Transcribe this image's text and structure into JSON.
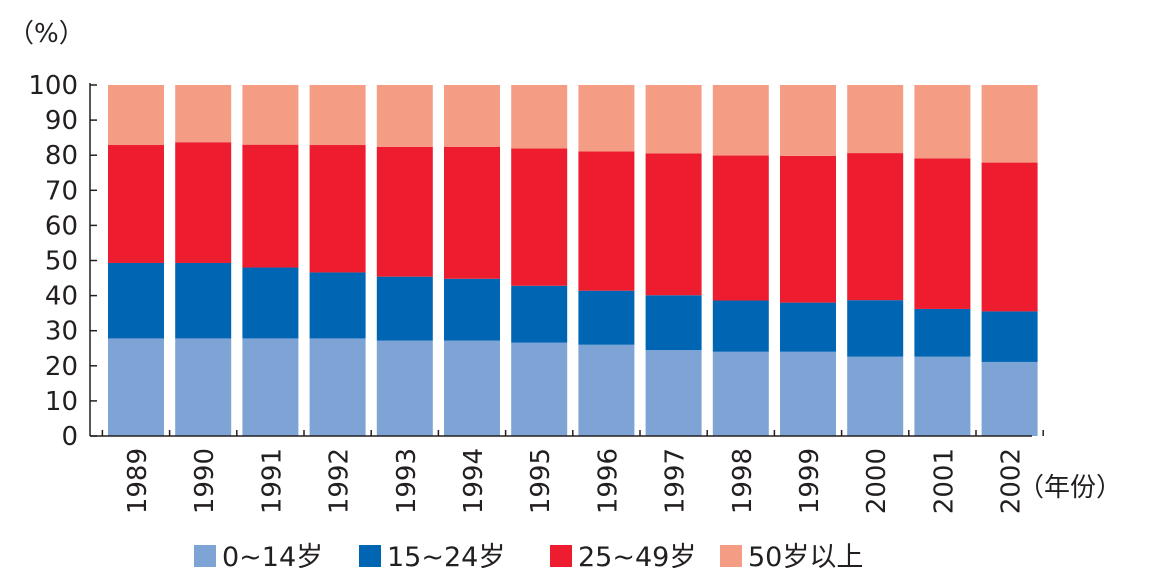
{
  "chart_data": {
    "type": "bar",
    "stacked": true,
    "y_unit_label": "（%）",
    "x_unit_label": "（年份）",
    "ylim": [
      0,
      100
    ],
    "yticks": [
      0,
      10,
      20,
      30,
      40,
      50,
      60,
      70,
      80,
      90,
      100
    ],
    "categories": [
      "1989",
      "1990",
      "1991",
      "1992",
      "1993",
      "1994",
      "1995",
      "1996",
      "1997",
      "1998",
      "1999",
      "2000",
      "2001",
      "2002"
    ],
    "series": [
      {
        "name": "0~14岁",
        "color": "#7ea3d5",
        "values": [
          27.8,
          27.8,
          27.8,
          27.8,
          27.2,
          27.2,
          26.6,
          26.0,
          24.5,
          24.0,
          24.0,
          22.6,
          22.6,
          21.1
        ]
      },
      {
        "name": "15~24岁",
        "color": "#0066b3",
        "values": [
          21.5,
          21.5,
          20.2,
          18.8,
          18.2,
          17.6,
          16.2,
          15.4,
          15.6,
          14.6,
          14.0,
          16.1,
          13.6,
          14.4
        ]
      },
      {
        "name": "25~49岁",
        "color": "#ed1c2e",
        "values": [
          33.6,
          34.4,
          35.0,
          36.3,
          37.0,
          37.6,
          39.1,
          39.7,
          40.4,
          41.3,
          41.8,
          41.9,
          42.9,
          42.4
        ]
      },
      {
        "name": "50岁以上",
        "color": "#f59c85",
        "values": [
          17.1,
          16.3,
          17.0,
          17.1,
          17.6,
          17.6,
          18.1,
          18.9,
          19.5,
          20.1,
          20.2,
          19.4,
          20.9,
          22.1
        ]
      }
    ],
    "legend_position": "bottom",
    "grid": false
  }
}
